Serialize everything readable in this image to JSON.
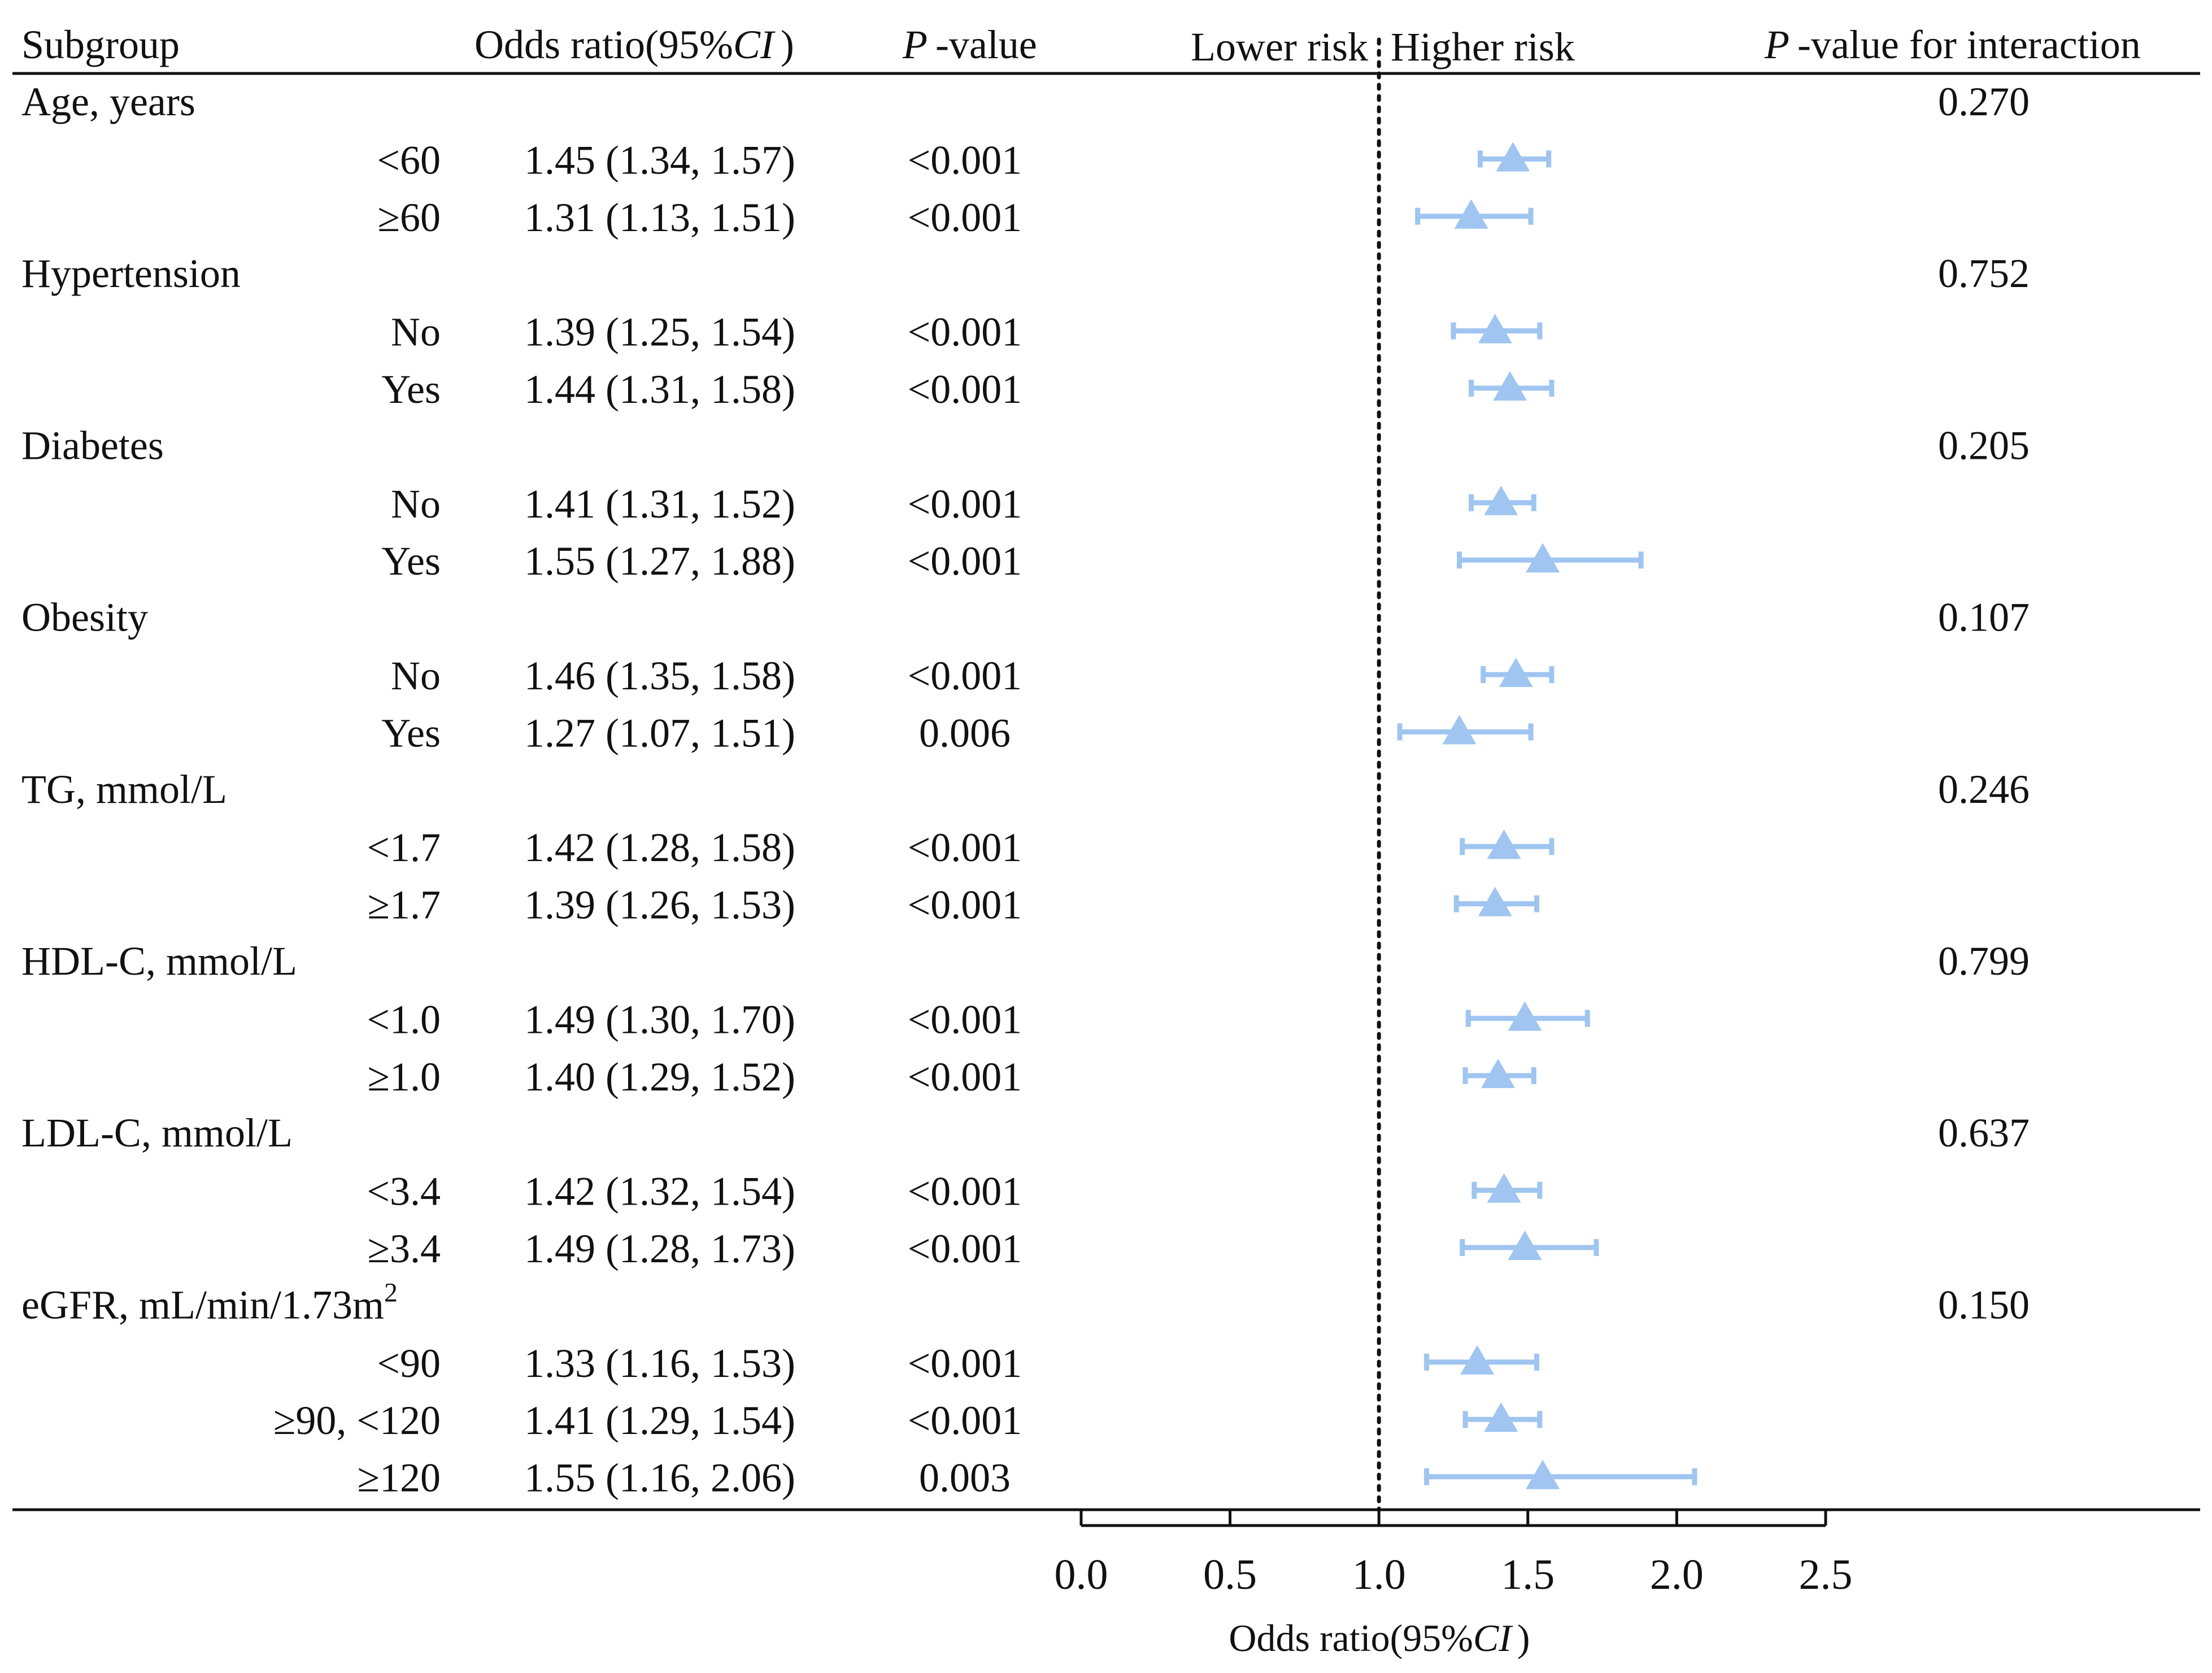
{
  "chart_data": {
    "type": "forest",
    "headers": {
      "subgroup": "Subgroup",
      "or_prefix": "Odds ratio(95%",
      "or_ci": "CI",
      "or_suffix": ")",
      "p_italic": "P",
      "p_suffix": "-value",
      "lower_risk": "Lower risk",
      "higher_risk": "Higher risk",
      "pint_italic": "P",
      "pint_suffix": "-value for interaction"
    },
    "groups": [
      {
        "label": "Age, years",
        "p_interaction": "0.270",
        "rows": [
          {
            "label": "<60",
            "or_text": "1.45 (1.34, 1.57)",
            "p": "<0.001",
            "or": 1.45,
            "lo": 1.34,
            "hi": 1.57
          },
          {
            "label": "≥60",
            "or_text": "1.31 (1.13, 1.51)",
            "p": "<0.001",
            "or": 1.31,
            "lo": 1.13,
            "hi": 1.51
          }
        ]
      },
      {
        "label": "Hypertension",
        "p_interaction": "0.752",
        "rows": [
          {
            "label": "No",
            "or_text": "1.39 (1.25, 1.54)",
            "p": "<0.001",
            "or": 1.39,
            "lo": 1.25,
            "hi": 1.54
          },
          {
            "label": "Yes",
            "or_text": "1.44 (1.31, 1.58)",
            "p": "<0.001",
            "or": 1.44,
            "lo": 1.31,
            "hi": 1.58
          }
        ]
      },
      {
        "label": "Diabetes",
        "p_interaction": "0.205",
        "rows": [
          {
            "label": "No",
            "or_text": "1.41 (1.31, 1.52)",
            "p": "<0.001",
            "or": 1.41,
            "lo": 1.31,
            "hi": 1.52
          },
          {
            "label": "Yes",
            "or_text": "1.55 (1.27, 1.88)",
            "p": "<0.001",
            "or": 1.55,
            "lo": 1.27,
            "hi": 1.88
          }
        ]
      },
      {
        "label": "Obesity",
        "p_interaction": "0.107",
        "rows": [
          {
            "label": "No",
            "or_text": "1.46 (1.35, 1.58)",
            "p": "<0.001",
            "or": 1.46,
            "lo": 1.35,
            "hi": 1.58
          },
          {
            "label": "Yes",
            "or_text": "1.27 (1.07, 1.51)",
            "p": "0.006",
            "or": 1.27,
            "lo": 1.07,
            "hi": 1.51
          }
        ]
      },
      {
        "label": "TG, mmol/L",
        "p_interaction": "0.246",
        "rows": [
          {
            "label": "<1.7",
            "or_text": "1.42 (1.28, 1.58)",
            "p": "<0.001",
            "or": 1.42,
            "lo": 1.28,
            "hi": 1.58
          },
          {
            "label": "≥1.7",
            "or_text": "1.39 (1.26, 1.53)",
            "p": "<0.001",
            "or": 1.39,
            "lo": 1.26,
            "hi": 1.53
          }
        ]
      },
      {
        "label": "HDL-C, mmol/L",
        "p_interaction": "0.799",
        "rows": [
          {
            "label": "<1.0",
            "or_text": "1.49 (1.30, 1.70)",
            "p": "<0.001",
            "or": 1.49,
            "lo": 1.3,
            "hi": 1.7
          },
          {
            "label": "≥1.0",
            "or_text": "1.40 (1.29, 1.52)",
            "p": "<0.001",
            "or": 1.4,
            "lo": 1.29,
            "hi": 1.52
          }
        ]
      },
      {
        "label": "LDL-C, mmol/L",
        "p_interaction": "0.637",
        "rows": [
          {
            "label": "<3.4",
            "or_text": "1.42 (1.32, 1.54)",
            "p": "<0.001",
            "or": 1.42,
            "lo": 1.32,
            "hi": 1.54
          },
          {
            "label": "≥3.4",
            "or_text": "1.49 (1.28, 1.73)",
            "p": "<0.001",
            "or": 1.49,
            "lo": 1.28,
            "hi": 1.73
          }
        ]
      },
      {
        "label": "eGFR, mL/min/1.73m",
        "label_sup": "2",
        "p_interaction": "0.150",
        "rows": [
          {
            "label": "<90",
            "or_text": "1.33 (1.16, 1.53)",
            "p": "<0.001",
            "or": 1.33,
            "lo": 1.16,
            "hi": 1.53
          },
          {
            "label": "≥90, <120",
            "or_text": "1.41 (1.29, 1.54)",
            "p": "<0.001",
            "or": 1.41,
            "lo": 1.29,
            "hi": 1.54
          },
          {
            "label": "≥120",
            "or_text": "1.55 (1.16, 2.06)",
            "p": "0.003",
            "or": 1.55,
            "lo": 1.16,
            "hi": 2.06
          }
        ]
      }
    ],
    "x_axis": {
      "ticks": [
        0.0,
        0.5,
        1.0,
        1.5,
        2.0,
        2.5
      ],
      "tick_labels": [
        "0.0",
        "0.5",
        "1.0",
        "1.5",
        "2.0",
        "2.5"
      ],
      "xlim": [
        0.0,
        2.5
      ],
      "reference": 1.0,
      "label_prefix": "Odds ratio(95%",
      "label_ci": "CI",
      "label_suffix": ")"
    },
    "marker_color": "#9fc5f0"
  }
}
